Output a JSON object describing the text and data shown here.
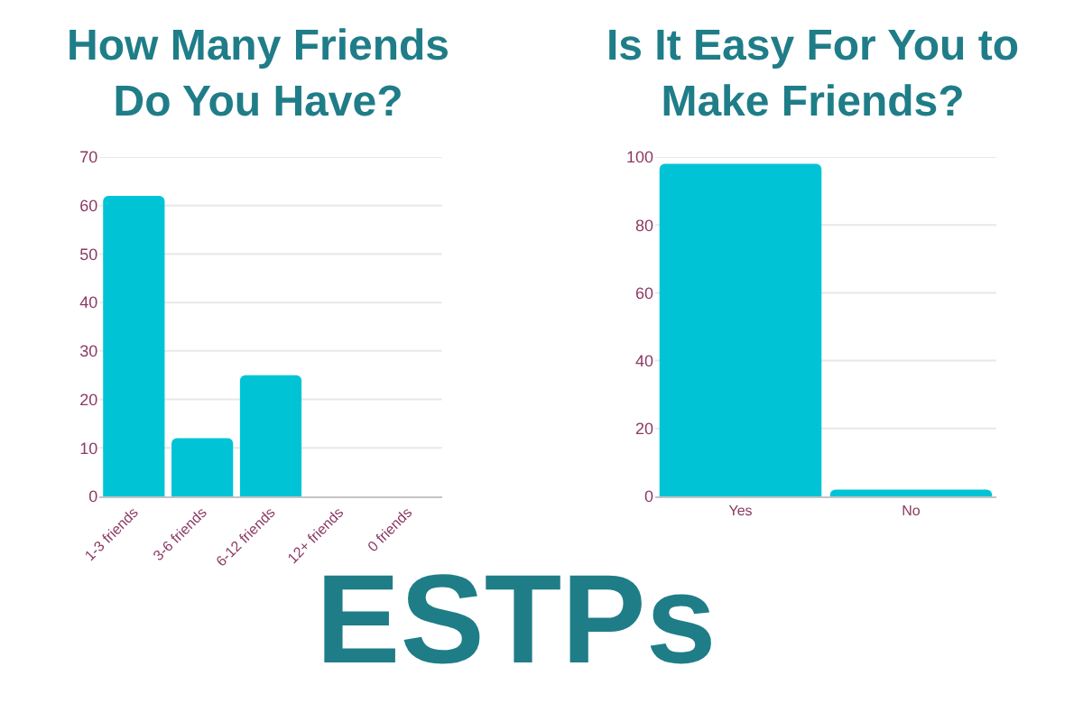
{
  "chart_data": [
    {
      "type": "bar",
      "title": "How Many Friends\nDo You Have?",
      "categories": [
        "1-3 friends",
        "3-6 friends",
        "6-12 friends",
        "12+ friends",
        "0 friends"
      ],
      "values": [
        62,
        12,
        25,
        0,
        0
      ],
      "color": "#00c4d6",
      "ylim": [
        0,
        70
      ],
      "yticks": [
        0,
        10,
        20,
        30,
        40,
        50,
        60,
        70
      ],
      "grid": "y",
      "annotations": [
        "ESTPs"
      ]
    },
    {
      "type": "bar",
      "title": "Is It Easy For You to\nMake Friends?",
      "categories": [
        "Yes",
        "No"
      ],
      "values": [
        98,
        2
      ],
      "color": "#00c4d6",
      "ylim": [
        0,
        100
      ],
      "yticks": [
        0,
        20,
        40,
        60,
        80,
        100
      ],
      "grid": "y"
    }
  ]
}
